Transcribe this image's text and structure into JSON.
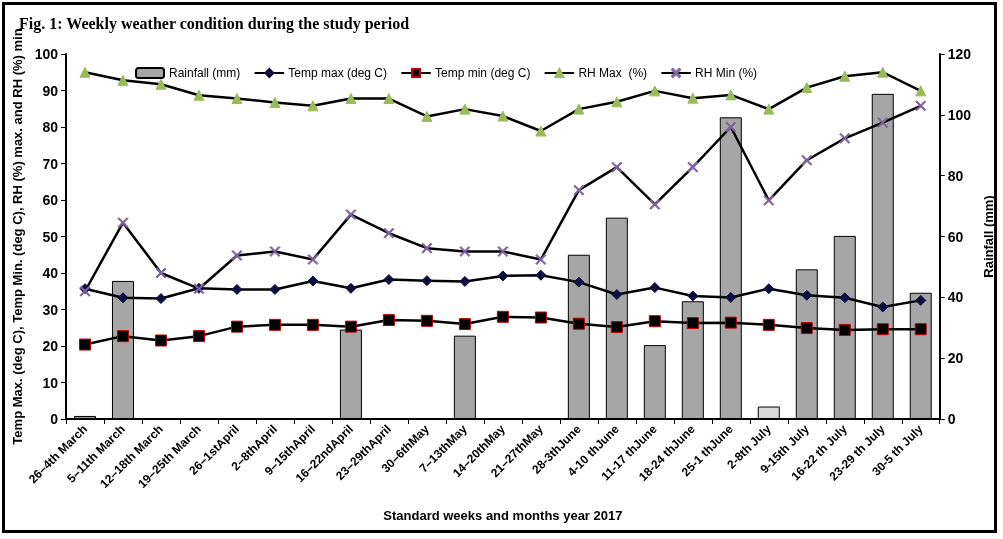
{
  "chart_data": {
    "type": "bar",
    "title": "Fig. 1: Weekly weather condition during the study period",
    "xlabel": "Standard weeks and months year 2017",
    "ylabel": "Temp Max. (deg C), Temp Min. (deg C), RH (%) max. and RH (%) min",
    "y2label": "Rainfall (mm)",
    "categories": [
      "26–4th March",
      "5–11th March",
      "12–18th March",
      "19–25th March",
      "26–1stApril",
      "2–8thApril",
      "9–15thApril",
      "16–22ndApril",
      "23–29thApril",
      "30–6thMay",
      "7–13thMay",
      "14–20thMay",
      "21–27thMay",
      "28-3thJune",
      "4-10 thJune",
      "11-17 thJune",
      "18-24 thJune",
      "25-1 thJune",
      "2-8th July",
      "9-15th July",
      "16-22 th July",
      "23-29 th July",
      "30-5 th July"
    ],
    "series": [
      {
        "name": "Rainfall (mm)",
        "axis": "y2",
        "color": "#a6a6a6",
        "colors": [
          "#ed7d31",
          "#a6a6a6",
          "#a6a6a6",
          "#a6a6a6",
          "#a6a6a6",
          "#a6a6a6",
          "#a6a6a6",
          "#a6a6a6",
          "#a6a6a6",
          "#a6a6a6",
          "#a6a6a6",
          "#a6a6a6",
          "#a6a6a6",
          "#a6a6a6",
          "#a6a6a6",
          "#a6a6a6",
          "#a6a6a6",
          "#a6a6a6",
          "#d9d9d9",
          "#a6a6a6",
          "#a6a6a6",
          "#a6a6a6",
          "#a6a6a6"
        ],
        "values": [
          1,
          45.4,
          0,
          0,
          0,
          0,
          0,
          29.4,
          0,
          0,
          27.4,
          0,
          0,
          54,
          66.2,
          24.3,
          38.7,
          99.2,
          4.1,
          49.2,
          60.2,
          106.9,
          41.5
        ]
      },
      {
        "name": "Temp max (deg C)",
        "type": "line",
        "marker": "diamond",
        "color": "#0d0d40",
        "values": [
          35.7,
          33.2,
          33,
          35.8,
          35.5,
          35.5,
          37.8,
          35.8,
          38.2,
          37.9,
          37.7,
          39.2,
          39.4,
          37.5,
          34.1,
          36,
          33.7,
          33.3,
          35.7,
          33.9,
          33.2,
          30.7,
          32.5
        ]
      },
      {
        "name": "Temp min (deg C)",
        "type": "line",
        "marker": "square",
        "color": "#000000",
        "values": [
          20.4,
          22.7,
          21.5,
          22.7,
          25.3,
          25.8,
          25.8,
          25.3,
          27.1,
          26.9,
          26,
          28,
          27.8,
          26.1,
          25.2,
          26.8,
          26.3,
          26.4,
          25.8,
          24.9,
          24.4,
          24.6,
          24.6
        ]
      },
      {
        "name": "RH Max  (%)",
        "type": "line",
        "marker": "triangle",
        "color": "#9bbb59",
        "values": [
          95,
          92.8,
          91.7,
          88.7,
          87.8,
          86.7,
          85.8,
          87.8,
          87.8,
          82.9,
          84.9,
          83,
          78.9,
          84.9,
          86.9,
          89.9,
          87.9,
          88.8,
          84.9,
          90.8,
          93.9,
          95,
          89.9
        ]
      },
      {
        "name": "RH Min (%)",
        "type": "line",
        "marker": "cross",
        "color": "#8064a2",
        "values": [
          35,
          53.8,
          40,
          35.7,
          44.8,
          45.9,
          43.7,
          56,
          50.9,
          46.8,
          45.9,
          45.9,
          43.7,
          62.7,
          69,
          58.8,
          69,
          80,
          59.9,
          70.9,
          76.9,
          81.2,
          85.8
        ]
      }
    ],
    "ylim": [
      0,
      100
    ],
    "yticks": [
      0,
      10,
      20,
      30,
      40,
      50,
      60,
      70,
      80,
      90,
      100
    ],
    "y2lim": [
      0,
      120
    ],
    "y2ticks": [
      0,
      20,
      40,
      60,
      80,
      100,
      120
    ],
    "grid": false,
    "legend": "top",
    "line_style": "solid"
  }
}
